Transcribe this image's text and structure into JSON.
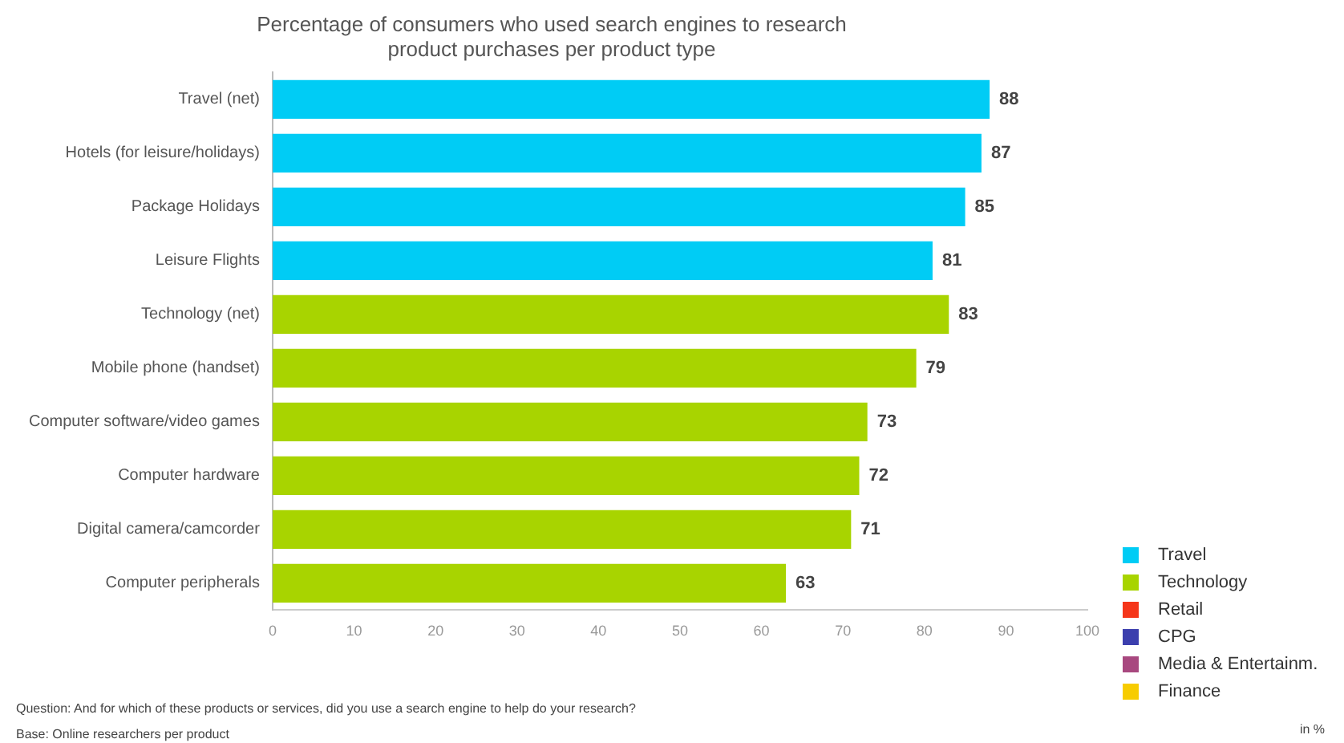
{
  "chart_data": {
    "type": "bar",
    "orientation": "horizontal",
    "title": "Percentage of consumers who used search engines to research\nproduct purchases per product type",
    "categories": [
      "Travel (net)",
      "Hotels (for leisure/holidays)",
      "Package Holidays",
      "Leisure Flights",
      "Technology (net)",
      "Mobile phone (handset)",
      "Computer software/video games",
      "Computer hardware",
      "Digital camera/camcorder",
      "Computer peripherals"
    ],
    "series": [
      {
        "name": "Travel",
        "color": "#00ccf5",
        "values": [
          88,
          87,
          85,
          81,
          null,
          null,
          null,
          null,
          null,
          null
        ]
      },
      {
        "name": "Technology",
        "color": "#a8d400",
        "values": [
          null,
          null,
          null,
          null,
          83,
          79,
          73,
          72,
          71,
          63
        ]
      },
      {
        "name": "Retail",
        "color": "#f5361a",
        "values": [
          null,
          null,
          null,
          null,
          null,
          null,
          null,
          null,
          null,
          null
        ]
      },
      {
        "name": "CPG",
        "color": "#3c3fae",
        "values": [
          null,
          null,
          null,
          null,
          null,
          null,
          null,
          null,
          null,
          null
        ]
      },
      {
        "name": "Media & Entertainm.",
        "color": "#a8487f",
        "values": [
          null,
          null,
          null,
          null,
          null,
          null,
          null,
          null,
          null,
          null
        ]
      },
      {
        "name": "Finance",
        "color": "#f7cc00",
        "values": [
          null,
          null,
          null,
          null,
          null,
          null,
          null,
          null,
          null,
          null
        ]
      }
    ],
    "xlim": [
      0,
      100
    ],
    "xticks": [
      0,
      10,
      20,
      30,
      40,
      50,
      60,
      70,
      80,
      90,
      100
    ],
    "grid": false,
    "legend": "bottom right",
    "data_labels": true,
    "annotations": [
      "Question: And for which of these products or services, did you use a search engine to help do your research?",
      "Base: Online researchers per product",
      "in %"
    ]
  }
}
